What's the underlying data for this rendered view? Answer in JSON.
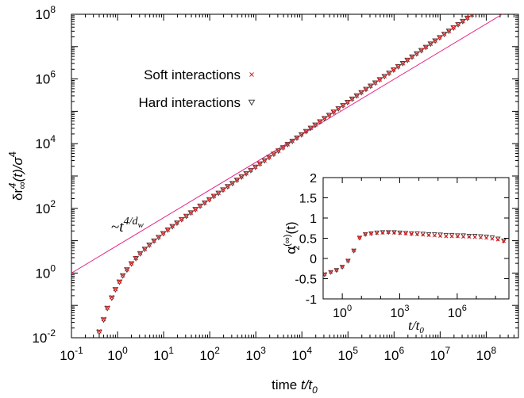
{
  "chart_data": [
    {
      "type": "scatter",
      "xscale": "log",
      "yscale": "log",
      "xlim": [
        0.1,
        500000000
      ],
      "ylim": [
        0.01,
        100000000
      ],
      "xticks": [
        {
          "base": "10",
          "exp": "-1",
          "value": 0.1
        },
        {
          "base": "10",
          "exp": "0",
          "value": 1
        },
        {
          "base": "10",
          "exp": "1",
          "value": 10
        },
        {
          "base": "10",
          "exp": "2",
          "value": 100
        },
        {
          "base": "10",
          "exp": "3",
          "value": 1000
        },
        {
          "base": "10",
          "exp": "4",
          "value": 10000
        },
        {
          "base": "10",
          "exp": "5",
          "value": 100000
        },
        {
          "base": "10",
          "exp": "6",
          "value": 1000000
        },
        {
          "base": "10",
          "exp": "7",
          "value": 10000000
        },
        {
          "base": "10",
          "exp": "8",
          "value": 100000000
        }
      ],
      "yticks": [
        {
          "base": "10",
          "exp": "-2",
          "value": 0.01
        },
        {
          "base": "10",
          "exp": "0",
          "value": 1
        },
        {
          "base": "10",
          "exp": "2",
          "value": 100
        },
        {
          "base": "10",
          "exp": "4",
          "value": 10000
        },
        {
          "base": "10",
          "exp": "6",
          "value": 1000000
        },
        {
          "base": "10",
          "exp": "8",
          "value": 100000000
        }
      ],
      "xlabel": {
        "prefix": "time ",
        "var": "t/t",
        "sub": "0"
      },
      "ylabel": {
        "p1": "δr",
        "sup": "4",
        "sub": "∞",
        "p2": "(t)/σ",
        "sup2": "4"
      },
      "annotation": {
        "prefix": "~",
        "var": "t",
        "sup": "4/d",
        "supsub": "w"
      },
      "legend_position": "top-left",
      "series": [
        {
          "name": "Soft interactions",
          "marker": "x",
          "color": "#e41a1c",
          "x": [
            0.4,
            0.5,
            0.6,
            0.75,
            0.9,
            1.1,
            1.3,
            1.6,
            2.0,
            2.5,
            3.1,
            3.9,
            4.9,
            6.2,
            7.8,
            9.8,
            12.3,
            15.5,
            19.5,
            24.6,
            31,
            39,
            49,
            62,
            78,
            98,
            123,
            155,
            195,
            246,
            310,
            390,
            490,
            620,
            780,
            980,
            1230,
            1550,
            1950,
            2460,
            3100,
            3900,
            4900,
            6200,
            7800,
            9800,
            12300,
            15500,
            19500,
            24600,
            31000,
            39000,
            49000,
            62000,
            78000,
            98000,
            123000,
            155000,
            195000,
            246000,
            310000,
            390000,
            490000,
            620000,
            780000,
            980000,
            1230000,
            1550000,
            1950000,
            2460000,
            3100000,
            3900000,
            4900000,
            6200000,
            7800000,
            9800000,
            12300000,
            15500000,
            19500000,
            24600000,
            31000000,
            39000000,
            49000000,
            62000000,
            78000000,
            98000000,
            123000000
          ],
          "y": [
            0.016,
            0.038,
            0.085,
            0.18,
            0.32,
            0.55,
            0.85,
            1.3,
            2.0,
            2.9,
            4.1,
            5.6,
            7.5,
            10,
            13,
            17,
            22,
            28,
            36,
            46,
            58,
            74,
            94,
            120,
            150,
            190,
            240,
            300,
            380,
            480,
            600,
            760,
            960,
            1210,
            1520,
            1920,
            2420,
            3040,
            3840,
            4840,
            6080,
            7660,
            9640,
            12100,
            15300,
            19300,
            24300,
            30600,
            38500,
            48500,
            61000,
            76900,
            96800,
            122000,
            154000,
            193000,
            244000,
            307000,
            386000,
            487000,
            613000,
            772000,
            972000,
            1220000,
            1540000,
            1940000,
            2440000,
            3080000,
            3870000,
            4880000,
            6140000,
            7730000,
            9730000,
            12300000,
            15400000,
            19400000,
            24500000,
            30800000,
            38800000,
            48900000,
            61500000,
            77400000,
            97500000,
            123000000,
            155000000,
            195000000,
            245000000
          ]
        },
        {
          "name": "Hard interactions",
          "marker": "triangle-down",
          "color": "#404040",
          "x": [
            0.4,
            0.5,
            0.6,
            0.75,
            0.9,
            1.1,
            1.3,
            1.6,
            2.0,
            2.5,
            3.1,
            3.9,
            4.9,
            6.2,
            7.8,
            9.8,
            12.3,
            15.5,
            19.5,
            24.6,
            31,
            39,
            49,
            62,
            78,
            98,
            123,
            155,
            195,
            246,
            310,
            390,
            490,
            620,
            780,
            980,
            1230,
            1550,
            1950,
            2460,
            3100,
            3900,
            4900,
            6200,
            7800,
            9800,
            12300,
            15500,
            19500,
            24600,
            31000,
            39000,
            49000,
            62000,
            78000,
            98000,
            123000,
            155000,
            195000,
            246000,
            310000,
            390000,
            490000,
            620000,
            780000,
            980000,
            1230000,
            1550000,
            1950000,
            2460000,
            3100000,
            3900000,
            4900000,
            6200000,
            7800000,
            9800000,
            12300000,
            15500000,
            19500000,
            24600000,
            31000000,
            39000000,
            49000000,
            62000000,
            78000000,
            98000000,
            123000000
          ],
          "y": [
            0.015,
            0.036,
            0.082,
            0.17,
            0.31,
            0.53,
            0.83,
            1.27,
            1.95,
            2.85,
            4.0,
            5.5,
            7.4,
            9.9,
            12.8,
            16.8,
            21.7,
            27.7,
            35.6,
            45.5,
            57.4,
            73.3,
            93.1,
            119,
            149,
            188,
            238,
            297,
            376,
            475,
            594,
            752,
            950,
            1200,
            1500,
            1900,
            2400,
            3010,
            3800,
            4790,
            6020,
            7580,
            9540,
            12000,
            15100,
            19100,
            24100,
            30300,
            38100,
            48000,
            60400,
            76100,
            95800,
            121000,
            152000,
            191000,
            241000,
            304000,
            382000,
            482000,
            607000,
            764000,
            962000,
            1210000,
            1520000,
            1920000,
            2420000,
            3050000,
            3830000,
            4830000,
            6080000,
            7650000,
            9630000,
            12200000,
            15200000,
            19200000,
            24300000,
            30500000,
            38400000,
            48400000,
            60900000,
            76600000,
            96500000,
            122000000,
            153000000,
            193000000,
            243000000
          ]
        },
        {
          "name": "",
          "type": "line",
          "color": "#e7298a",
          "x": [
            0.1,
            500000000
          ],
          "y": [
            1,
            200000000
          ]
        }
      ]
    },
    {
      "type": "scatter",
      "inset": true,
      "xscale": "log",
      "xlim": [
        0.1,
        500000000
      ],
      "ylim": [
        -1,
        2
      ],
      "xticks": [
        {
          "base": "10",
          "exp": "0",
          "value": 1
        },
        {
          "base": "10",
          "exp": "3",
          "value": 1000
        },
        {
          "base": "10",
          "exp": "6",
          "value": 1000000
        }
      ],
      "yticks": [
        "2",
        "1.5",
        "1",
        "0.5",
        "0",
        "-0.5",
        "-1"
      ],
      "ytick_values": [
        2,
        1.5,
        1,
        0.5,
        0,
        -0.5,
        -1
      ],
      "xlabel": {
        "var": "t/t",
        "sub": "0"
      },
      "ylabel": {
        "base": "α",
        "sup": "(∞)",
        "sub": "2",
        "rest": "(t)"
      },
      "series": [
        {
          "name": "Soft interactions",
          "marker": "x",
          "color": "#e41a1c",
          "x": [
            0.12,
            0.25,
            0.5,
            1.0,
            2.0,
            4.0,
            8.0,
            16,
            32,
            64,
            128,
            256,
            512,
            1024,
            2048,
            4096,
            8192,
            16384,
            32768,
            65536,
            131072,
            262144,
            524288,
            1048576,
            2097152,
            4194304,
            8388608,
            16777216,
            33554432,
            67108864,
            134217728,
            268435456
          ],
          "y": [
            -0.38,
            -0.33,
            -0.28,
            -0.2,
            -0.05,
            0.2,
            0.52,
            0.6,
            0.62,
            0.63,
            0.64,
            0.65,
            0.64,
            0.63,
            0.62,
            0.61,
            0.6,
            0.59,
            0.58,
            0.57,
            0.56,
            0.55,
            0.55,
            0.55,
            0.54,
            0.54,
            0.53,
            0.52,
            0.51,
            0.49,
            0.47,
            0.43
          ]
        },
        {
          "name": "Hard interactions",
          "marker": "triangle-down",
          "color": "#404040",
          "x": [
            0.12,
            0.25,
            0.5,
            1.0,
            2.0,
            4.0,
            8.0,
            16,
            32,
            64,
            128,
            256,
            512,
            1024,
            2048,
            4096,
            8192,
            16384,
            32768,
            65536,
            131072,
            262144,
            524288,
            1048576,
            2097152,
            4194304,
            8388608,
            16777216,
            33554432,
            67108864,
            134217728,
            268435456
          ],
          "y": [
            -0.4,
            -0.34,
            -0.29,
            -0.21,
            -0.06,
            0.19,
            0.51,
            0.6,
            0.62,
            0.64,
            0.65,
            0.65,
            0.65,
            0.64,
            0.63,
            0.62,
            0.62,
            0.61,
            0.6,
            0.6,
            0.59,
            0.58,
            0.58,
            0.57,
            0.57,
            0.56,
            0.56,
            0.55,
            0.54,
            0.52,
            0.49,
            0.44
          ]
        }
      ]
    }
  ]
}
